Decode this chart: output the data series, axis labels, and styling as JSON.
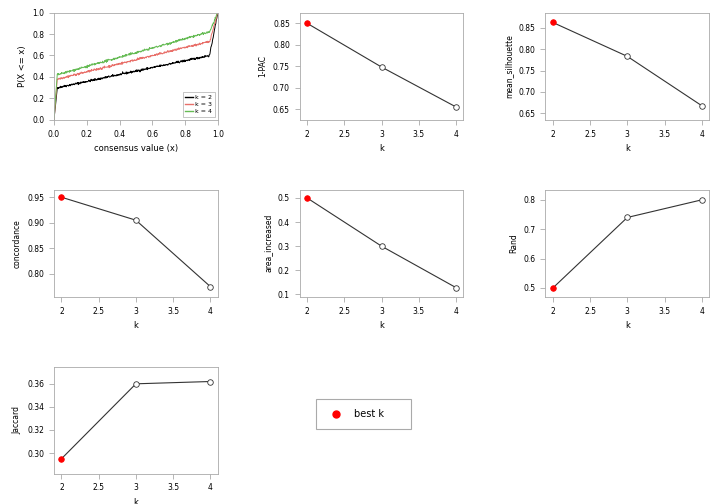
{
  "k_values": [
    2,
    3,
    4
  ],
  "pac_1minus": [
    0.85,
    0.748,
    0.655
  ],
  "mean_silhouette": [
    0.862,
    0.783,
    0.668
  ],
  "concordance": [
    0.95,
    0.905,
    0.775
  ],
  "area_increased": [
    0.5,
    0.3,
    0.128
  ],
  "rand": [
    0.5,
    0.74,
    0.8
  ],
  "jaccard": [
    0.295,
    0.36,
    0.362
  ],
  "best_k_pac": 2,
  "best_k_sil": 2,
  "best_k_conc": 2,
  "best_k_area": 2,
  "best_k_rand": 2,
  "best_k_jacc": 2,
  "ecdf_colors": [
    "#000000",
    "#e8706a",
    "#66bb55"
  ],
  "ecdf_labels": [
    "k = 2",
    "k = 3",
    "k = 4"
  ],
  "line_color": "#333333",
  "open_marker_facecolor": "#ffffff",
  "best_marker_color": "#ff0000",
  "marker_edgecolor": "#333333",
  "spine_color": "#aaaaaa",
  "tick_color": "#aaaaaa"
}
